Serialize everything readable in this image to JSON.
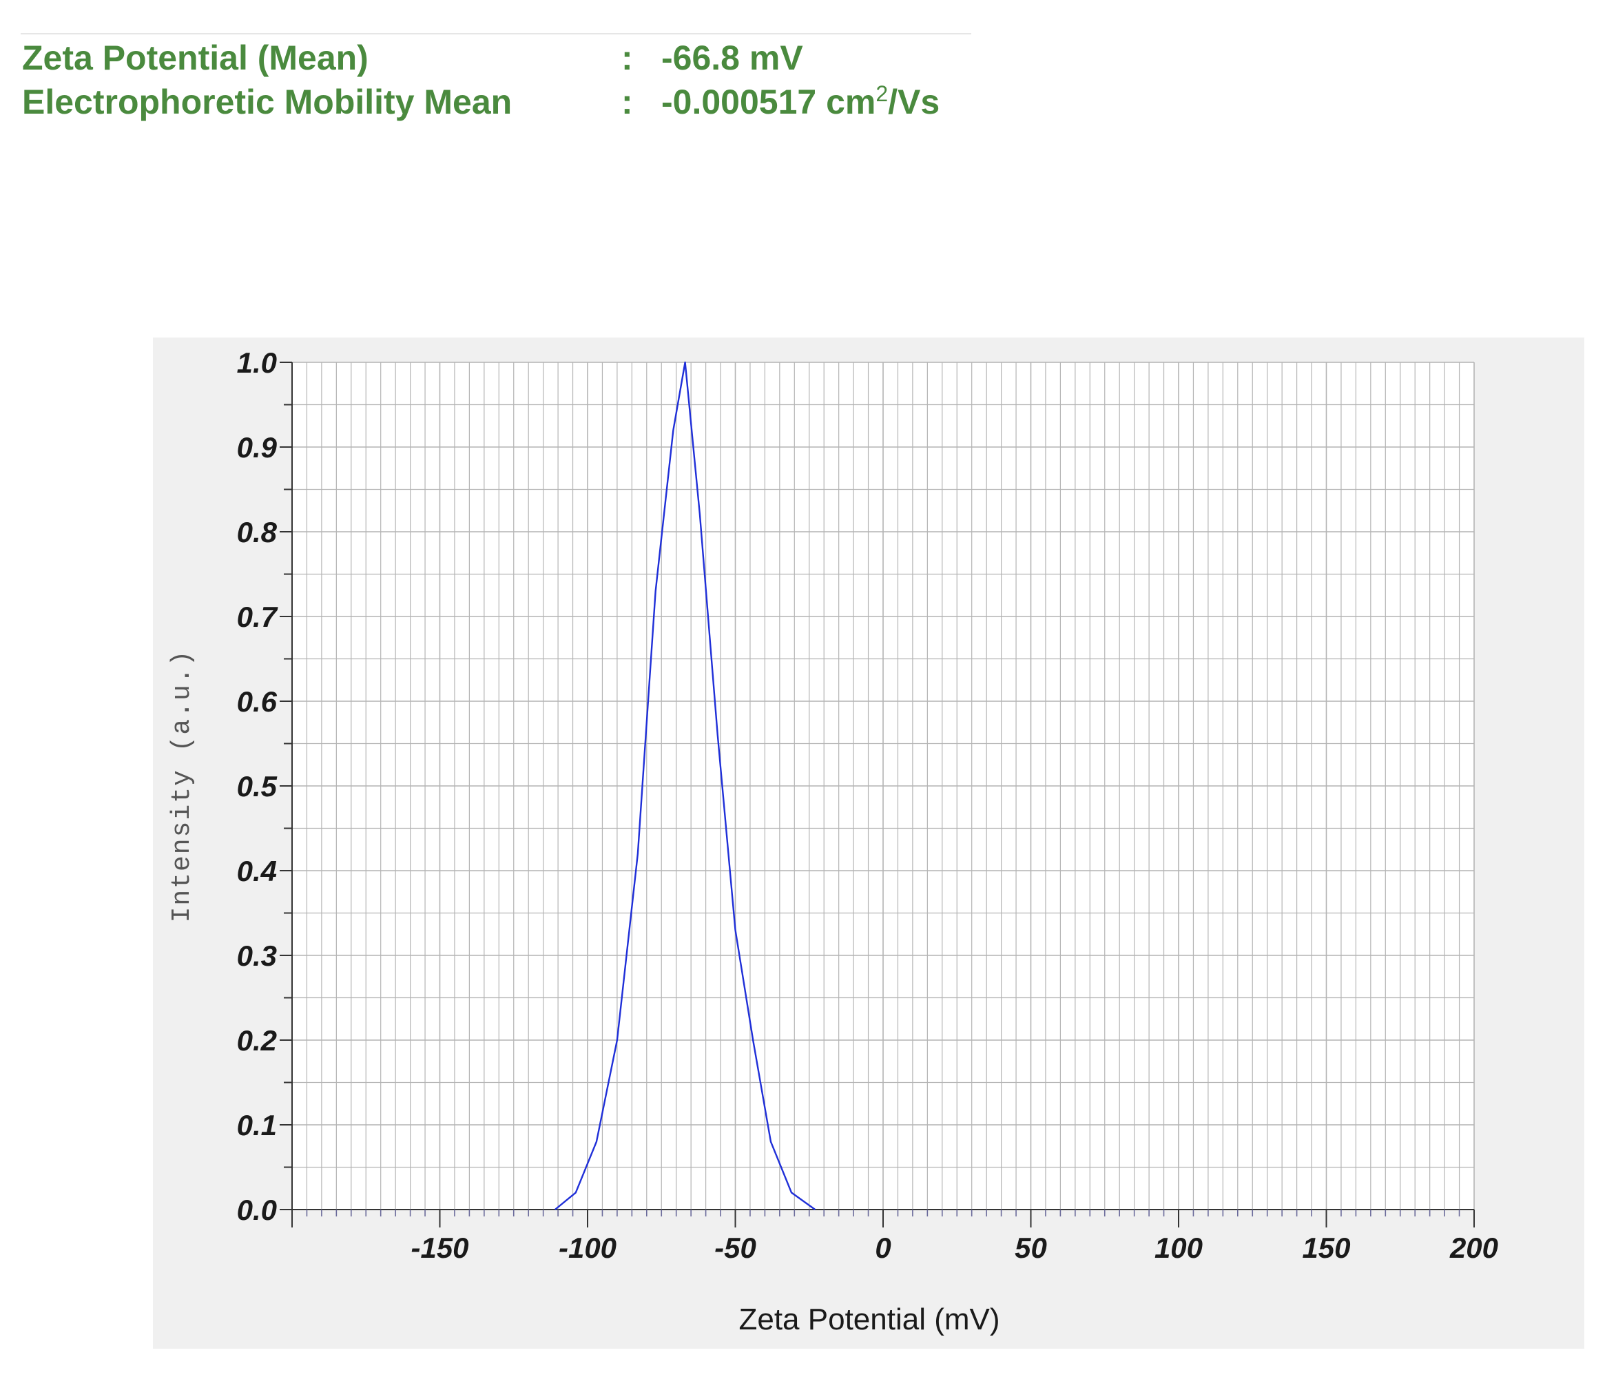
{
  "summary": {
    "zeta_label": "Zeta Potential (Mean)",
    "zeta_colon": ":",
    "zeta_value": "-66.8  mV",
    "mobility_label": "Electrophoretic Mobility Mean",
    "mobility_colon": ":",
    "mobility_value_main": "-0.000517  cm",
    "mobility_value_sup": "2",
    "mobility_value_tail": "/Vs"
  },
  "colors": {
    "summary_text": "#4a8a3e",
    "series_line": "#1f2fd8",
    "grid": "#b4b4b4",
    "panel_background": "#f0f0f0",
    "plot_background": "#ffffff"
  },
  "chart_data": {
    "type": "line",
    "title": "",
    "xlabel": "Zeta Potential (mV)",
    "ylabel": "Intensity (a.u.)",
    "xlim": [
      -200,
      200
    ],
    "ylim": [
      0,
      1.0
    ],
    "grid": true,
    "legend": "none",
    "x_ticks": [
      -150,
      -100,
      -50,
      0,
      50,
      100,
      150,
      200
    ],
    "x_tick_labels": [
      "-150",
      "-100",
      "-50",
      "0",
      "50",
      "100",
      "150",
      "200"
    ],
    "y_ticks": [
      0.0,
      0.1,
      0.2,
      0.3,
      0.4,
      0.5,
      0.6,
      0.7,
      0.8,
      0.9,
      1.0
    ],
    "y_tick_labels": [
      "0.0",
      "0.1",
      "0.2",
      "0.3",
      "0.4",
      "0.5",
      "0.6",
      "0.7",
      "0.8",
      "0.9",
      "1.0"
    ],
    "series": [
      {
        "x": [
          -111,
          -104,
          -97,
          -90,
          -83,
          -77,
          -71,
          -67,
          -62,
          -56,
          -50,
          -44,
          -38,
          -31,
          -23
        ],
        "y": [
          0.0,
          0.02,
          0.08,
          0.2,
          0.42,
          0.73,
          0.92,
          1.0,
          0.82,
          0.56,
          0.33,
          0.2,
          0.08,
          0.02,
          0.0
        ]
      }
    ]
  }
}
